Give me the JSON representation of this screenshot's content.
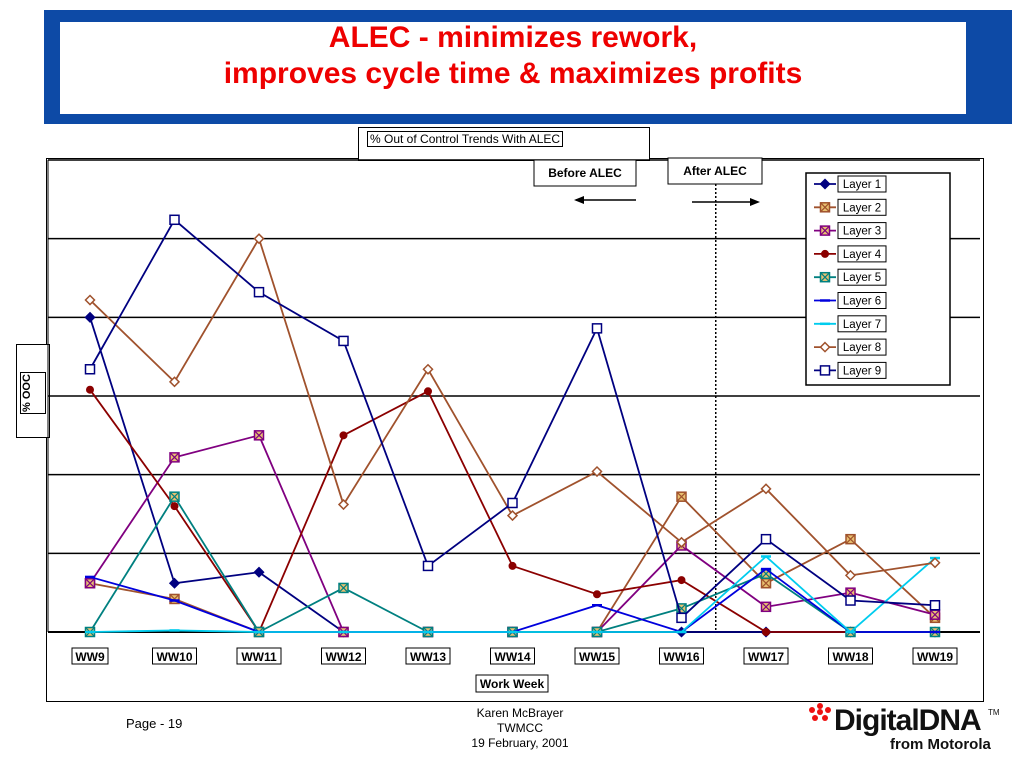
{
  "slide": {
    "title_line1": "ALEC - minimizes rework,",
    "title_line2": "improves cycle time & maximizes profits",
    "page": "Page - 19",
    "author": "Karen McBrayer",
    "org": "TWMCC",
    "date": "19 February, 2001",
    "logo_main": "DigitalDNA",
    "logo_tm": "TM",
    "logo_sub": "from Motorola"
  },
  "colors": {
    "title_band": "#1560c8",
    "title_text": "#ee0000"
  },
  "chart_data": {
    "type": "line",
    "title": "% Out of Control Trends With ALEC",
    "xlabel": "Work Week",
    "ylabel": "% OOC",
    "categories": [
      "WW9",
      "WW10",
      "WW11",
      "WW12",
      "WW13",
      "WW14",
      "WW15",
      "WW16",
      "WW17",
      "WW18",
      "WW19"
    ],
    "ylim": [
      0,
      6
    ],
    "y_tick_labels_shown": false,
    "grid": "horizontal",
    "legend_position": "top-right",
    "annotations": {
      "before": "Before ALEC",
      "after": "After ALEC",
      "divider_between": [
        "WW16",
        "WW17"
      ]
    },
    "series": [
      {
        "name": "Layer 1",
        "color": "#000080",
        "marker": "diamond",
        "values": [
          4.0,
          0.62,
          0.76,
          0,
          0,
          0,
          0,
          0,
          0,
          0,
          0
        ]
      },
      {
        "name": "Layer 2",
        "color": "#a0522d",
        "marker": "square-x",
        "values": [
          0.62,
          0.42,
          0,
          0,
          0,
          0,
          0,
          1.72,
          0.62,
          1.18,
          0.18
        ]
      },
      {
        "name": "Layer 3",
        "color": "#800080",
        "marker": "square-x",
        "values": [
          0.62,
          2.22,
          2.5,
          0,
          0,
          0,
          0,
          1.1,
          0.32,
          0.5,
          0.22
        ]
      },
      {
        "name": "Layer 4",
        "color": "#8b0000",
        "marker": "circle",
        "values": [
          3.08,
          1.6,
          0,
          2.5,
          3.06,
          0.84,
          0.48,
          0.66,
          0,
          0,
          0
        ]
      },
      {
        "name": "Layer 5",
        "color": "#008080",
        "marker": "square-x",
        "values": [
          0,
          1.72,
          0,
          0.56,
          0,
          0,
          0,
          0.3,
          0.74,
          0,
          0
        ]
      },
      {
        "name": "Layer 6",
        "color": "#0000dd",
        "marker": "dash",
        "values": [
          0.7,
          0.4,
          0,
          0,
          0,
          0,
          0.34,
          0,
          0.8,
          0,
          0
        ]
      },
      {
        "name": "Layer 7",
        "color": "#00ccee",
        "marker": "dash",
        "values": [
          0,
          0.02,
          0,
          0,
          0,
          0,
          0,
          0,
          0.96,
          0,
          0.94
        ]
      },
      {
        "name": "Layer 8",
        "color": "#a0522d",
        "marker": "diamond",
        "values": [
          4.22,
          3.18,
          5.0,
          1.62,
          3.34,
          1.48,
          2.04,
          1.14,
          1.82,
          0.72,
          0.88
        ]
      },
      {
        "name": "Layer 9",
        "color": "#000080",
        "marker": "square",
        "values": [
          3.34,
          5.24,
          4.32,
          3.7,
          0.84,
          1.64,
          3.86,
          0.18,
          1.18,
          0.4,
          0.34
        ]
      }
    ]
  }
}
